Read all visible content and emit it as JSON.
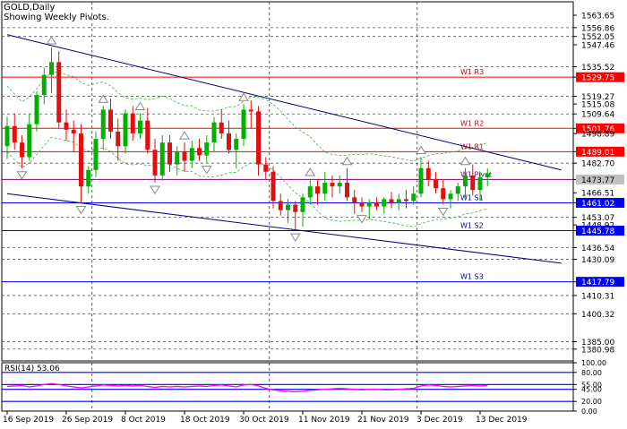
{
  "window": {
    "title": "GOLD,Daily",
    "subtitle": "Showing Weekly Pivots."
  },
  "colors": {
    "background": "#ffffff",
    "bull": "#00b000",
    "bear": "#e01010",
    "resistance": "#ff0000",
    "support": "#0000ff",
    "trendline": "#00007f",
    "envelope": "#4caf50",
    "rsi": "#ff00ff",
    "rsi_bands": "#0000ff",
    "fractal": "#888888"
  },
  "chart_data": [
    {
      "type": "candlestick",
      "name": "GOLD,Daily",
      "ylim": [
        1374.5,
        1571.0
      ],
      "price_labels": [
        {
          "value": 1563.65,
          "text": "1563.65"
        },
        {
          "value": 1556.86,
          "text": "1556.86"
        },
        {
          "value": 1552.05,
          "text": "1552.05"
        },
        {
          "value": 1547.46,
          "text": "1547.46"
        },
        {
          "value": 1535.52,
          "text": "1535.52"
        },
        {
          "value": 1529.75,
          "text": "1529.75",
          "highlight": "#ff0000"
        },
        {
          "value": 1519.27,
          "text": "1519.27"
        },
        {
          "value": 1515.08,
          "text": "1515.08"
        },
        {
          "value": 1509.64,
          "text": "1509.64"
        },
        {
          "value": 1501.76,
          "text": "1501.76",
          "highlight": "#ff0000"
        },
        {
          "value": 1498.89,
          "text": "1498.89"
        },
        {
          "value": 1489.01,
          "text": "1489.01",
          "highlight": "#ff0000"
        },
        {
          "value": 1482.7,
          "text": "1482.70"
        },
        {
          "value": 1473.77,
          "text": "1473.77",
          "highlight": "#c0c0c0"
        },
        {
          "value": 1466.51,
          "text": "1466.51"
        },
        {
          "value": 1461.02,
          "text": "1461.02",
          "highlight": "#0000ff"
        },
        {
          "value": 1453.07,
          "text": "1453.07"
        },
        {
          "value": 1448.92,
          "text": "1448.92"
        },
        {
          "value": 1445.78,
          "text": "1445.78",
          "highlight": "#0000ff"
        },
        {
          "value": 1436.54,
          "text": "1436.54"
        },
        {
          "value": 1430.09,
          "text": "1430.09"
        },
        {
          "value": 1417.79,
          "text": "1417.79",
          "highlight": "#0000ff"
        },
        {
          "value": 1410.31,
          "text": "1410.31"
        },
        {
          "value": 1400.32,
          "text": "1400.32"
        },
        {
          "value": 1385.0,
          "text": "1385.00"
        },
        {
          "value": 1380.98,
          "text": "1380.98"
        }
      ],
      "dashed_levels": [
        1556.86,
        1552.05,
        1535.52,
        1519.27,
        1509.64,
        1482.7,
        1453.07,
        1436.54,
        1430.09,
        1410.31,
        1400.32,
        1385.0,
        1380.98
      ],
      "pivots": [
        {
          "label": "W1  R3",
          "value": 1529.75,
          "kind": "resistance"
        },
        {
          "label": "W1  R2",
          "value": 1501.76,
          "kind": "resistance"
        },
        {
          "label": "W1  R1",
          "value": 1489.01,
          "kind": "resistance"
        },
        {
          "label": "W1  Pivot",
          "value": 1473.77,
          "kind": "pivot"
        },
        {
          "label": "W1  S1",
          "value": 1461.02,
          "kind": "support"
        },
        {
          "label": "W1  S2",
          "value": 1445.78,
          "kind": "support"
        },
        {
          "label": "W1  S3",
          "value": 1417.79,
          "kind": "support"
        }
      ],
      "x_labels": [
        "16 Sep 2019",
        "26 Sep 2019",
        "8 Oct 2019",
        "18 Oct 2019",
        "30 Oct 2019",
        "11 Nov 2019",
        "21 Nov 2019",
        "3 Dec 2019",
        "13 Dec 2019"
      ],
      "x_label_index": [
        0,
        8,
        16,
        24,
        32,
        40,
        48,
        56,
        64
      ],
      "vertical_grid_index": [
        11,
        35,
        55
      ],
      "candles": [
        {
          "o": 1492,
          "h": 1508,
          "l": 1485,
          "c": 1503
        },
        {
          "o": 1503,
          "h": 1510,
          "l": 1490,
          "c": 1494
        },
        {
          "o": 1494,
          "h": 1498,
          "l": 1480,
          "c": 1486
        },
        {
          "o": 1486,
          "h": 1510,
          "l": 1484,
          "c": 1504
        },
        {
          "o": 1504,
          "h": 1522,
          "l": 1500,
          "c": 1520
        },
        {
          "o": 1520,
          "h": 1535,
          "l": 1515,
          "c": 1531
        },
        {
          "o": 1531,
          "h": 1546,
          "l": 1521,
          "c": 1538
        },
        {
          "o": 1538,
          "h": 1544,
          "l": 1502,
          "c": 1505
        },
        {
          "o": 1505,
          "h": 1512,
          "l": 1495,
          "c": 1501
        },
        {
          "o": 1501,
          "h": 1506,
          "l": 1489,
          "c": 1499
        },
        {
          "o": 1499,
          "h": 1504,
          "l": 1461,
          "c": 1470
        },
        {
          "o": 1470,
          "h": 1481,
          "l": 1466,
          "c": 1479
        },
        {
          "o": 1479,
          "h": 1500,
          "l": 1475,
          "c": 1496
        },
        {
          "o": 1496,
          "h": 1514,
          "l": 1490,
          "c": 1512
        },
        {
          "o": 1512,
          "h": 1518,
          "l": 1496,
          "c": 1500
        },
        {
          "o": 1500,
          "h": 1507,
          "l": 1484,
          "c": 1492
        },
        {
          "o": 1492,
          "h": 1512,
          "l": 1488,
          "c": 1510
        },
        {
          "o": 1510,
          "h": 1514,
          "l": 1495,
          "c": 1499
        },
        {
          "o": 1499,
          "h": 1510,
          "l": 1496,
          "c": 1506
        },
        {
          "o": 1506,
          "h": 1513,
          "l": 1488,
          "c": 1490
        },
        {
          "o": 1490,
          "h": 1496,
          "l": 1472,
          "c": 1476
        },
        {
          "o": 1476,
          "h": 1498,
          "l": 1473,
          "c": 1494
        },
        {
          "o": 1494,
          "h": 1498,
          "l": 1478,
          "c": 1482
        },
        {
          "o": 1482,
          "h": 1492,
          "l": 1476,
          "c": 1489
        },
        {
          "o": 1489,
          "h": 1494,
          "l": 1478,
          "c": 1484
        },
        {
          "o": 1484,
          "h": 1495,
          "l": 1480,
          "c": 1491
        },
        {
          "o": 1491,
          "h": 1496,
          "l": 1484,
          "c": 1487
        },
        {
          "o": 1487,
          "h": 1498,
          "l": 1483,
          "c": 1494
        },
        {
          "o": 1494,
          "h": 1508,
          "l": 1489,
          "c": 1505
        },
        {
          "o": 1505,
          "h": 1512,
          "l": 1496,
          "c": 1499
        },
        {
          "o": 1499,
          "h": 1506,
          "l": 1488,
          "c": 1490
        },
        {
          "o": 1490,
          "h": 1499,
          "l": 1480,
          "c": 1496
        },
        {
          "o": 1496,
          "h": 1515,
          "l": 1492,
          "c": 1512
        },
        {
          "o": 1512,
          "h": 1517,
          "l": 1502,
          "c": 1511
        },
        {
          "o": 1511,
          "h": 1514,
          "l": 1476,
          "c": 1482
        },
        {
          "o": 1482,
          "h": 1486,
          "l": 1474,
          "c": 1478
        },
        {
          "o": 1478,
          "h": 1481,
          "l": 1458,
          "c": 1462
        },
        {
          "o": 1462,
          "h": 1466,
          "l": 1454,
          "c": 1457
        },
        {
          "o": 1457,
          "h": 1463,
          "l": 1450,
          "c": 1460
        },
        {
          "o": 1460,
          "h": 1462,
          "l": 1446,
          "c": 1456
        },
        {
          "o": 1456,
          "h": 1466,
          "l": 1448,
          "c": 1464
        },
        {
          "o": 1464,
          "h": 1474,
          "l": 1460,
          "c": 1470
        },
        {
          "o": 1470,
          "h": 1474,
          "l": 1460,
          "c": 1466
        },
        {
          "o": 1466,
          "h": 1478,
          "l": 1462,
          "c": 1472
        },
        {
          "o": 1472,
          "h": 1476,
          "l": 1464,
          "c": 1470
        },
        {
          "o": 1470,
          "h": 1476,
          "l": 1466,
          "c": 1472
        },
        {
          "o": 1472,
          "h": 1480,
          "l": 1462,
          "c": 1464
        },
        {
          "o": 1464,
          "h": 1468,
          "l": 1455,
          "c": 1461
        },
        {
          "o": 1461,
          "h": 1464,
          "l": 1456,
          "c": 1459
        },
        {
          "o": 1459,
          "h": 1463,
          "l": 1452,
          "c": 1461
        },
        {
          "o": 1461,
          "h": 1464,
          "l": 1457,
          "c": 1459
        },
        {
          "o": 1459,
          "h": 1464,
          "l": 1455,
          "c": 1463
        },
        {
          "o": 1463,
          "h": 1467,
          "l": 1458,
          "c": 1461
        },
        {
          "o": 1461,
          "h": 1466,
          "l": 1457,
          "c": 1463
        },
        {
          "o": 1463,
          "h": 1468,
          "l": 1458,
          "c": 1462
        },
        {
          "o": 1462,
          "h": 1470,
          "l": 1460,
          "c": 1466
        },
        {
          "o": 1466,
          "h": 1486,
          "l": 1464,
          "c": 1480
        },
        {
          "o": 1480,
          "h": 1484,
          "l": 1470,
          "c": 1474
        },
        {
          "o": 1474,
          "h": 1478,
          "l": 1466,
          "c": 1469
        },
        {
          "o": 1469,
          "h": 1474,
          "l": 1460,
          "c": 1463
        },
        {
          "o": 1463,
          "h": 1468,
          "l": 1458,
          "c": 1466
        },
        {
          "o": 1466,
          "h": 1472,
          "l": 1462,
          "c": 1470
        },
        {
          "o": 1470,
          "h": 1480,
          "l": 1464,
          "c": 1476
        },
        {
          "o": 1476,
          "h": 1482,
          "l": 1465,
          "c": 1468
        },
        {
          "o": 1468,
          "h": 1478,
          "l": 1462,
          "c": 1475
        },
        {
          "o": 1475,
          "h": 1480,
          "l": 1470,
          "c": 1477
        }
      ],
      "fractals_up": [
        6,
        13,
        18,
        24,
        32,
        41,
        46,
        56,
        62
      ],
      "fractals_down": [
        2,
        10,
        20,
        27,
        39,
        48,
        59
      ],
      "trendlines": [
        {
          "name": "upper",
          "from": {
            "index": 0,
            "value": 1553
          },
          "to": {
            "index": 75,
            "value": 1479
          }
        },
        {
          "name": "lower",
          "from": {
            "index": 0,
            "value": 1466
          },
          "to": {
            "index": 75,
            "value": 1428
          }
        }
      ]
    },
    {
      "type": "line",
      "name": "RSI(14) 53.06",
      "title": "RSI(14) 53.06",
      "ylim": [
        0,
        100
      ],
      "levels": [
        {
          "value": 100,
          "text": "100.00"
        },
        {
          "value": 80,
          "text": "80.00"
        },
        {
          "value": 55,
          "text": "55.00"
        },
        {
          "value": 45,
          "text": "45.00"
        },
        {
          "value": 20,
          "text": "20.00"
        },
        {
          "value": 0,
          "text": "0.00"
        }
      ],
      "band_levels": [
        80,
        55,
        45,
        20
      ],
      "series": [
        {
          "values": [
            51,
            52,
            53,
            50,
            52,
            55,
            57,
            55,
            52,
            50,
            48,
            50,
            52,
            54,
            53,
            52,
            53,
            52,
            53,
            51,
            49,
            51,
            50,
            51,
            50,
            51,
            52,
            51,
            53,
            54,
            52,
            50,
            54,
            55,
            52,
            47,
            44,
            42,
            41,
            40,
            41,
            43,
            44,
            45,
            46,
            47,
            46,
            45,
            44,
            45,
            45,
            44,
            44,
            45,
            46,
            47,
            52,
            54,
            53,
            51,
            50,
            51,
            52,
            53,
            52,
            53
          ]
        }
      ]
    }
  ]
}
